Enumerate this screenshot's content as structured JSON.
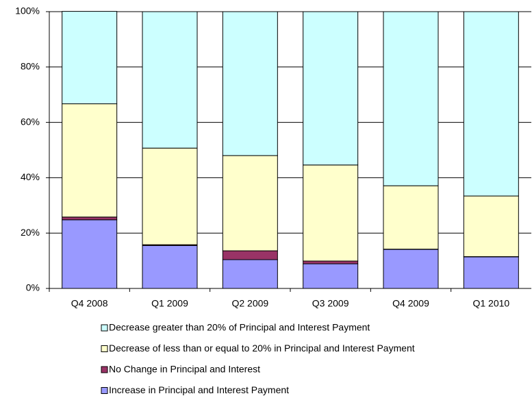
{
  "chart_data": {
    "type": "bar",
    "stacked": true,
    "categories": [
      "Q4 2008",
      "Q1 2009",
      "Q2 2009",
      "Q3 2009",
      "Q4 2009",
      "Q1 2010"
    ],
    "series": [
      {
        "name": "Increase in Principal and Interest Payment",
        "color": "#9999ff",
        "values": [
          24.8,
          15.5,
          10.4,
          8.9,
          14.1,
          11.4
        ]
      },
      {
        "name": "No Change in Principal and Interest",
        "color": "#993366",
        "values": [
          1.0,
          0.3,
          3.2,
          1.0,
          0.1,
          0.1
        ]
      },
      {
        "name": "Decrease of less than or equal to 20% in Principal and Interest Payment",
        "color": "#ffffcc",
        "values": [
          40.9,
          34.9,
          34.4,
          34.7,
          22.9,
          21.9
        ]
      },
      {
        "name": "Decrease greater than 20% of Principal and Interest Payment",
        "color": "#ccffff",
        "values": [
          33.4,
          49.3,
          52.0,
          55.4,
          62.9,
          66.6
        ]
      }
    ],
    "ylim": [
      0,
      100
    ],
    "yticks": [
      {
        "value": 0,
        "label": "0%"
      },
      {
        "value": 20,
        "label": "20%"
      },
      {
        "value": 40,
        "label": "40%"
      },
      {
        "value": 60,
        "label": "60%"
      },
      {
        "value": 80,
        "label": "80%"
      },
      {
        "value": 100,
        "label": "100%"
      }
    ],
    "grid": true
  }
}
